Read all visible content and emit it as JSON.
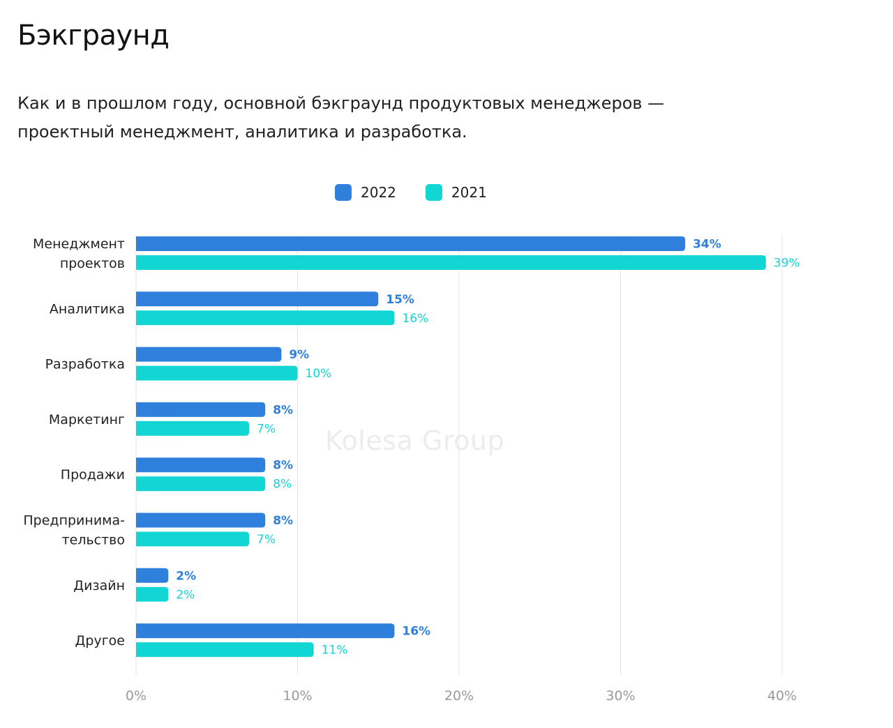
{
  "title": "Бэкграунд",
  "subtitle": "Как и в прошлом году, основной бэкграунд продуктовых менеджеров — проектный менеджмент, аналитика и разработка.",
  "watermark": "Kolesa Group",
  "chart_data": {
    "type": "bar",
    "orientation": "horizontal",
    "categories": [
      [
        "Менеджмент",
        "проектов"
      ],
      [
        "Аналитика"
      ],
      [
        "Разработка"
      ],
      [
        "Маркетинг"
      ],
      [
        "Продажи"
      ],
      [
        "Предпринима-",
        "тельство"
      ],
      [
        "Дизайн"
      ],
      [
        "Другое"
      ]
    ],
    "series": [
      {
        "name": "2022",
        "color": "#2f7fdc",
        "values": [
          34,
          15,
          9,
          8,
          8,
          8,
          2,
          16
        ]
      },
      {
        "name": "2021",
        "color": "#12d6d3",
        "values": [
          39,
          16,
          10,
          7,
          8,
          7,
          2,
          11
        ]
      }
    ],
    "xlim": [
      0,
      40
    ],
    "xticks": [
      "0%",
      "10%",
      "20%",
      "30%",
      "40%"
    ],
    "xtick_values": [
      0,
      10,
      20,
      30,
      40
    ],
    "value_suffix": "%",
    "grid": true,
    "legend": "top-center"
  }
}
